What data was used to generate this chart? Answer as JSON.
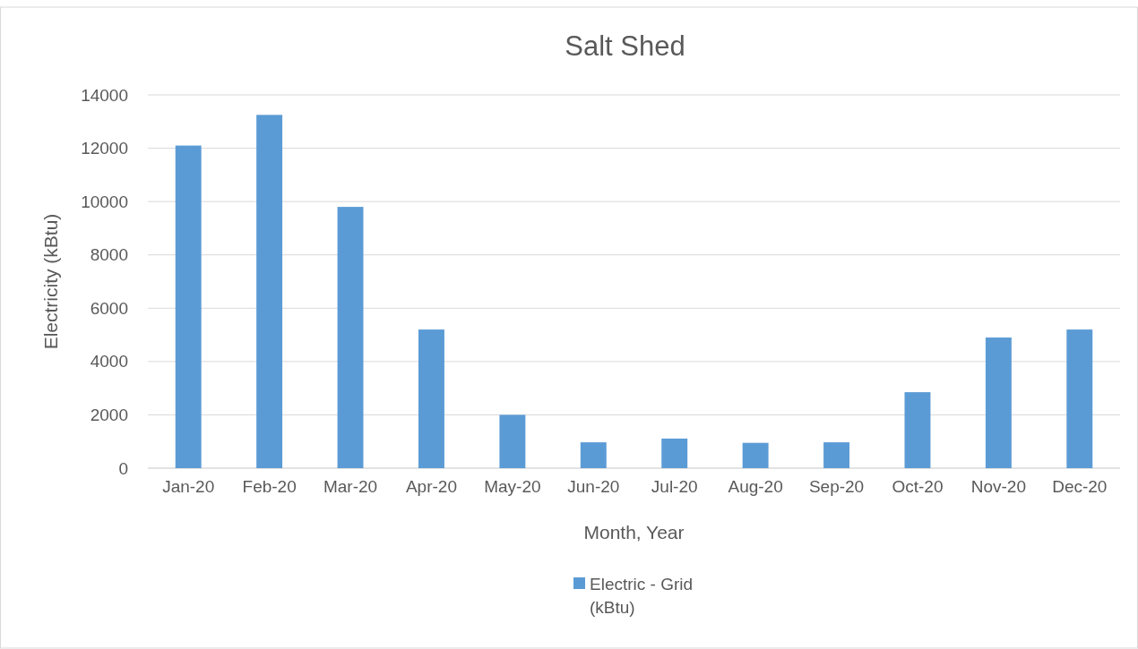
{
  "chart_data": {
    "type": "bar",
    "title": "Salt Shed",
    "xlabel": "Month, Year",
    "ylabel": "Electricity (kBtu)",
    "categories": [
      "Jan-20",
      "Feb-20",
      "Mar-20",
      "Apr-20",
      "May-20",
      "Jun-20",
      "Jul-20",
      "Aug-20",
      "Sep-20",
      "Oct-20",
      "Nov-20",
      "Dec-20"
    ],
    "series": [
      {
        "name": "Electric - Grid (kBtu)",
        "color": "#5b9bd5",
        "values": [
          12100,
          13250,
          9800,
          5200,
          2000,
          970,
          1110,
          950,
          970,
          2850,
          4900,
          5200
        ]
      }
    ],
    "ylim": [
      0,
      14000
    ],
    "yticks": [
      0,
      2000,
      4000,
      6000,
      8000,
      10000,
      12000,
      14000
    ],
    "grid": "y",
    "legend": "bottom"
  }
}
